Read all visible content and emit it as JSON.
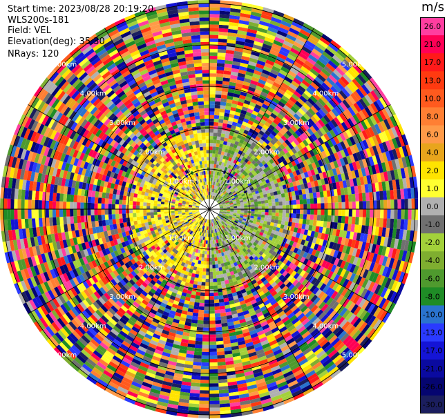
{
  "info": {
    "start_time": "Start time: 2023/08/28 20:19:20",
    "instrument": "WLS200s-181",
    "field": "Field: VEL",
    "elevation": "Elevation(deg): 35.30",
    "nrays": "NRays: 120"
  },
  "colorbar": {
    "unit": "m/s",
    "labels": [
      "26.0",
      "21.0",
      "17.0",
      "13.0",
      "10.0",
      "8.0",
      "6.0",
      "4.0",
      "2.0",
      "1.0",
      "0.0",
      "-1.0",
      "-2.0",
      "-4.0",
      "-6.0",
      "-8.0",
      "-10.0",
      "-13.0",
      "-17.0",
      "-21.0",
      "-26.0",
      "-30.0"
    ],
    "colors": [
      "#ff3ea0",
      "#ff0055",
      "#ff1a1a",
      "#ff3a10",
      "#ff5a1e",
      "#ff7f33",
      "#ff9a48",
      "#e8a51c",
      "#ffe300",
      "#ffff30",
      "#b0b0b0",
      "#707070",
      "#a3d13a",
      "#7fae30",
      "#4f9a2e",
      "#1f8c26",
      "#2a73cf",
      "#2a3aff",
      "#1414d6",
      "#0a0aa0",
      "#050570",
      "#1b1e5e"
    ]
  },
  "chart_data": {
    "type": "heatmap",
    "projection": "polar PPI",
    "field": "VEL",
    "units": "m/s",
    "nrays": 120,
    "range_ring_labels": [
      "1.00km",
      "2.00km",
      "3.00km",
      "4.00km",
      "5.00km"
    ],
    "colorbar_range": [
      -30,
      26
    ]
  }
}
